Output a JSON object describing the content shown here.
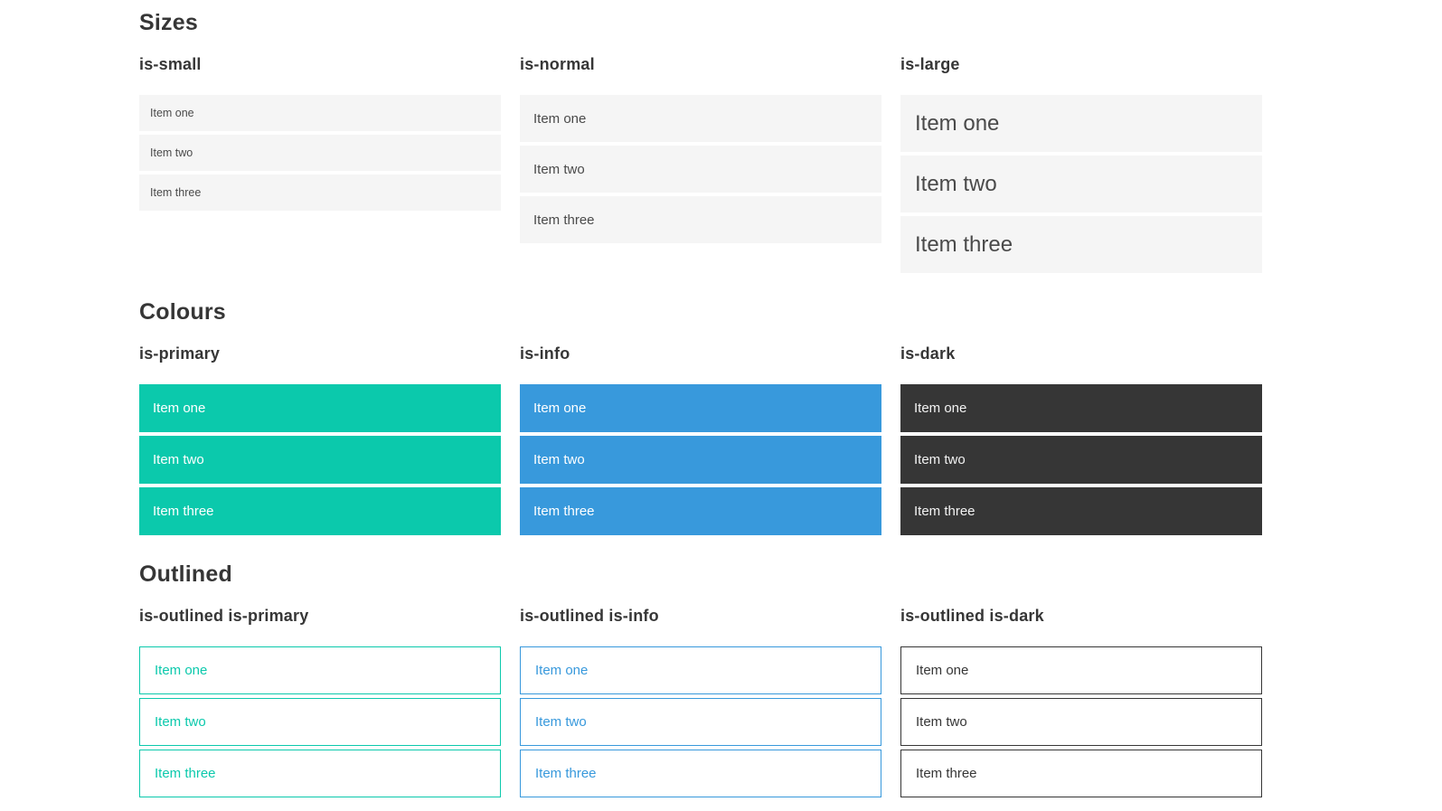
{
  "colors": {
    "primary": "#0bc9ac",
    "info": "#3899dc",
    "dark": "#363636",
    "heading": "#363636",
    "gray-bg": "#f5f5f5",
    "gray-text": "#4a4a4a",
    "dark-text": "#363636"
  },
  "sections": [
    {
      "title": "Sizes",
      "columns": [
        {
          "label": "is-small",
          "items": [
            "Item one",
            "Item two",
            "Item three"
          ]
        },
        {
          "label": "is-normal",
          "items": [
            "Item one",
            "Item two",
            "Item three"
          ]
        },
        {
          "label": "is-large",
          "items": [
            "Item one",
            "Item two",
            "Item three"
          ]
        }
      ]
    },
    {
      "title": "Colours",
      "columns": [
        {
          "label": "is-primary",
          "items": [
            "Item one",
            "Item two",
            "Item three"
          ]
        },
        {
          "label": "is-info",
          "items": [
            "Item one",
            "Item two",
            "Item three"
          ]
        },
        {
          "label": "is-dark",
          "items": [
            "Item one",
            "Item two",
            "Item three"
          ]
        }
      ]
    },
    {
      "title": "Outlined",
      "columns": [
        {
          "label": "is-outlined is-primary",
          "items": [
            "Item one",
            "Item two",
            "Item three"
          ]
        },
        {
          "label": "is-outlined is-info",
          "items": [
            "Item one",
            "Item two",
            "Item three"
          ]
        },
        {
          "label": "is-outlined is-dark",
          "items": [
            "Item one",
            "Item two",
            "Item three"
          ]
        }
      ]
    }
  ]
}
